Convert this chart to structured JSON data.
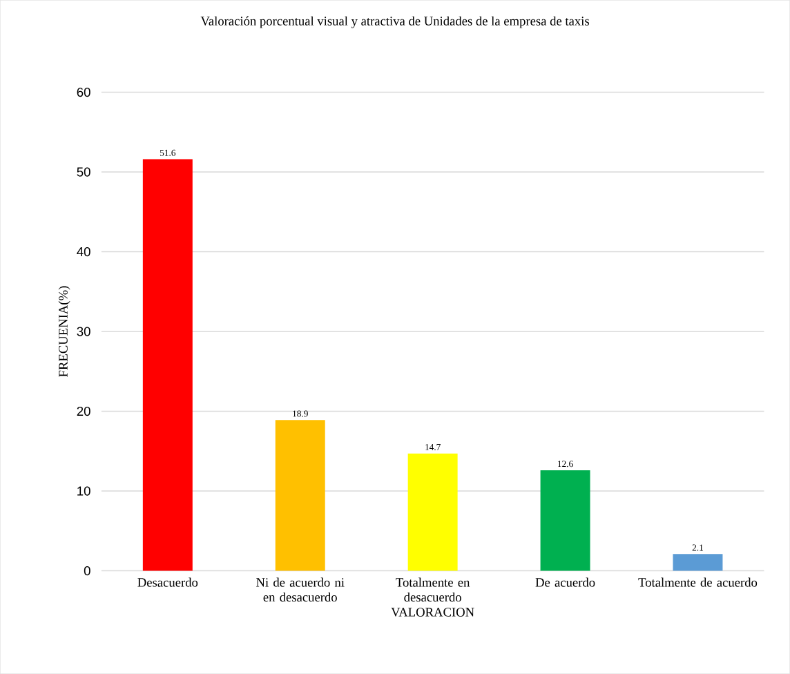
{
  "chart_data": {
    "type": "bar",
    "title": "Valoración porcentual visual y atractiva de Unidades de la empresa de taxis",
    "xlabel": "VALORACION",
    "ylabel": "FRECUENIA(%)",
    "categories": [
      "Desacuerdo",
      "Ni de acuerdo ni en desacuerdo",
      "Totalmente en desacuerdo",
      "De acuerdo",
      "Totalmente de acuerdo"
    ],
    "values": [
      51.6,
      18.9,
      14.7,
      12.6,
      2.1
    ],
    "colors": [
      "#ff0000",
      "#ffc000",
      "#ffff00",
      "#00b050",
      "#5b9bd5"
    ],
    "ylim": [
      0,
      60
    ],
    "yticks": [
      0,
      10,
      20,
      30,
      40,
      50,
      60
    ],
    "grid": "y",
    "data_labels": true
  }
}
